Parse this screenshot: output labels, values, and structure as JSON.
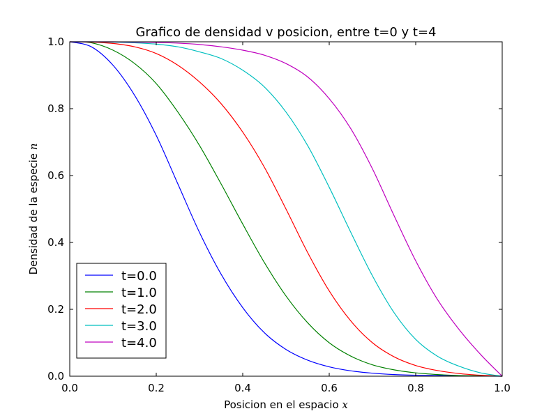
{
  "chart_data": {
    "type": "line",
    "title": "Grafico de densidad v posicion, entre t=0 y t=4",
    "xlabel": "Posicion en el espacio ",
    "xlabel_var": "x",
    "ylabel": "Densidad de la especie ",
    "ylabel_var": "n",
    "xlim": [
      0.0,
      1.0
    ],
    "ylim": [
      0.0,
      1.0
    ],
    "xticks": [
      "0.0",
      "0.2",
      "0.4",
      "0.6",
      "0.8",
      "1.0"
    ],
    "yticks": [
      "0.0",
      "0.2",
      "0.4",
      "0.6",
      "0.8",
      "1.0"
    ],
    "grid": false,
    "legend_position": "lower-left",
    "x": [
      0.0,
      0.05,
      0.1,
      0.15,
      0.2,
      0.25,
      0.3,
      0.35,
      0.4,
      0.45,
      0.5,
      0.55,
      0.6,
      0.65,
      0.7,
      0.75,
      0.8,
      0.85,
      0.9,
      0.95,
      1.0
    ],
    "series": [
      {
        "name": "t=0.0",
        "color": "#0000ff",
        "values": [
          1.0,
          0.985,
          0.93,
          0.84,
          0.72,
          0.575,
          0.43,
          0.305,
          0.205,
          0.13,
          0.08,
          0.048,
          0.028,
          0.016,
          0.009,
          0.005,
          0.003,
          0.002,
          0.001,
          0.0005,
          0.0
        ]
      },
      {
        "name": "t=1.0",
        "color": "#008000",
        "values": [
          1.0,
          0.997,
          0.975,
          0.935,
          0.875,
          0.79,
          0.69,
          0.575,
          0.455,
          0.34,
          0.24,
          0.16,
          0.1,
          0.06,
          0.034,
          0.019,
          0.01,
          0.005,
          0.002,
          0.001,
          0.0
        ]
      },
      {
        "name": "t=2.0",
        "color": "#ff0000",
        "values": [
          1.0,
          0.999,
          0.995,
          0.985,
          0.965,
          0.93,
          0.88,
          0.815,
          0.73,
          0.625,
          0.5,
          0.37,
          0.255,
          0.165,
          0.1,
          0.058,
          0.032,
          0.017,
          0.008,
          0.003,
          0.0
        ]
      },
      {
        "name": "t=3.0",
        "color": "#00bfbf",
        "values": [
          1.0,
          1.0,
          0.999,
          0.997,
          0.993,
          0.985,
          0.97,
          0.95,
          0.915,
          0.865,
          0.79,
          0.69,
          0.565,
          0.43,
          0.3,
          0.19,
          0.11,
          0.06,
          0.03,
          0.01,
          0.0
        ]
      },
      {
        "name": "t=4.0",
        "color": "#bf00bf",
        "values": [
          1.0,
          1.0,
          1.0,
          0.999,
          0.998,
          0.996,
          0.992,
          0.985,
          0.975,
          0.96,
          0.935,
          0.895,
          0.83,
          0.74,
          0.62,
          0.48,
          0.345,
          0.23,
          0.14,
          0.065,
          0.0
        ]
      }
    ]
  }
}
